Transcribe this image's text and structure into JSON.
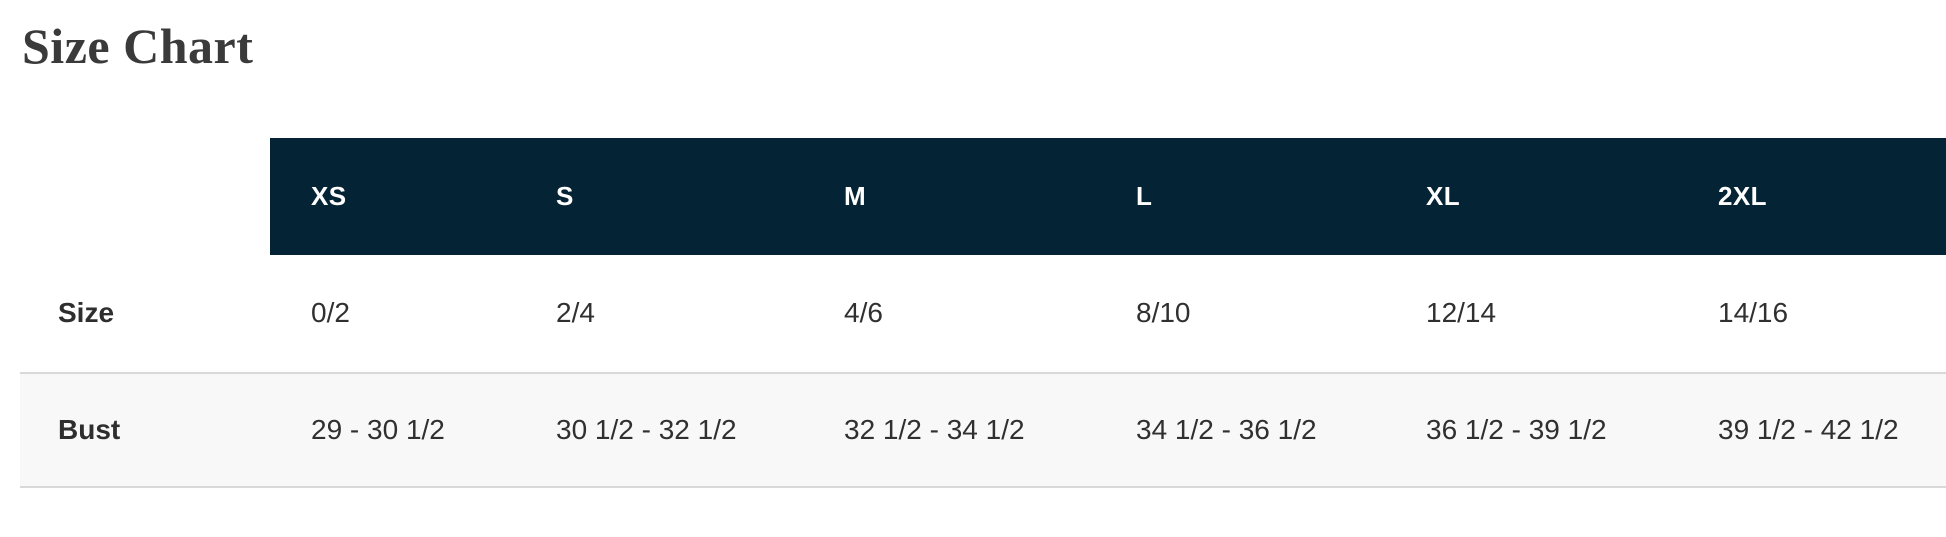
{
  "title": "Size Chart",
  "table": {
    "columns": [
      "XS",
      "S",
      "M",
      "L",
      "XL",
      "2XL"
    ],
    "rows": [
      {
        "label": "Size",
        "values": [
          "0/2",
          "2/4",
          "4/6",
          "8/10",
          "12/14",
          "14/16"
        ]
      },
      {
        "label": "Bust",
        "values": [
          "29 - 30 1/2",
          "30 1/2 - 32 1/2",
          "32 1/2 - 34 1/2",
          "34 1/2 - 36 1/2",
          "36 1/2 - 39 1/2",
          "39 1/2 - 42 1/2"
        ]
      }
    ]
  },
  "colors": {
    "header_bg": "#042334",
    "header_text": "#ffffff",
    "row_alt_bg": "#f8f8f8",
    "divider": "#d9d9d9",
    "title_text": "#3a3a3a",
    "label_text": "#2e2e2e",
    "cell_text": "#303030"
  }
}
